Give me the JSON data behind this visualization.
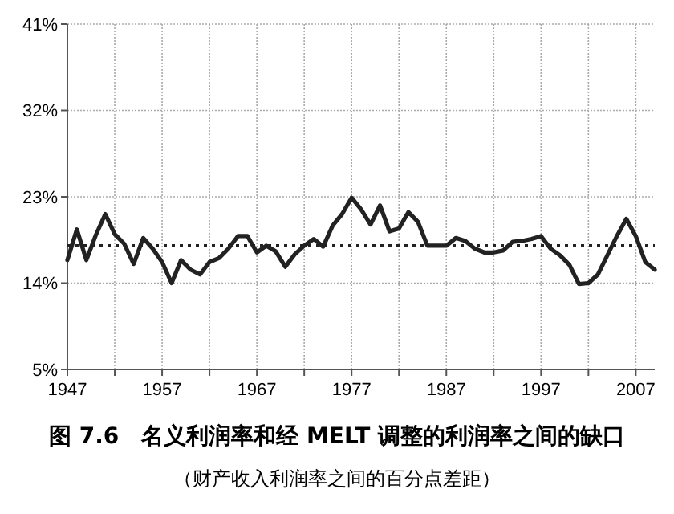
{
  "chart_data": {
    "type": "line",
    "title": "图 7.6　名义利润率和经 MELT 调整的利润率之间的缺口",
    "subtitle": "（财产收入利润率之间的百分点差距）",
    "x": [
      1947,
      1948,
      1949,
      1950,
      1951,
      1952,
      1953,
      1954,
      1955,
      1956,
      1957,
      1958,
      1959,
      1960,
      1961,
      1962,
      1963,
      1964,
      1965,
      1966,
      1967,
      1968,
      1969,
      1970,
      1971,
      1972,
      1973,
      1974,
      1975,
      1976,
      1977,
      1978,
      1979,
      1980,
      1981,
      1982,
      1983,
      1984,
      1985,
      1986,
      1987,
      1988,
      1989,
      1990,
      1991,
      1992,
      1993,
      1994,
      1995,
      1996,
      1997,
      1998,
      1999,
      2000,
      2001,
      2002,
      2003,
      2004,
      2005,
      2006,
      2007,
      2008,
      2009
    ],
    "series": [
      {
        "color": "#222222",
        "values": [
          16.4,
          19.6,
          16.4,
          19,
          21.2,
          19.1,
          18.1,
          16,
          18.7,
          17.6,
          16.2,
          14,
          16.4,
          15.4,
          14.9,
          16.2,
          16.6,
          17.6,
          18.9,
          18.9,
          17.2,
          17.9,
          17.3,
          15.7,
          17,
          17.9,
          18.6,
          17.8,
          20,
          21.2,
          22.9,
          21.7,
          20.1,
          22.1,
          19.4,
          19.7,
          21.4,
          20.4,
          17.9,
          17.9,
          17.9,
          18.7,
          18.4,
          17.6,
          17.2,
          17.2,
          17.4,
          18.3,
          18.4,
          18.6,
          18.9,
          17.6,
          16.9,
          15.9,
          13.9,
          14,
          14.9,
          16.9,
          18.9,
          20.7,
          18.9,
          16.2,
          15.4
        ]
      }
    ],
    "ref_lines": [
      {
        "axis": "y",
        "value": 17.9,
        "color": "#222222",
        "line_style": "dotted"
      }
    ],
    "xlim": [
      1947,
      2009
    ],
    "xticks": [
      1947,
      {
        "value": 1952,
        "label": null
      },
      1957,
      {
        "value": 1962,
        "label": null
      },
      1967,
      {
        "value": 1972,
        "label": null
      },
      1977,
      {
        "value": 1982,
        "label": null
      },
      1987,
      {
        "value": 1992,
        "label": null
      },
      1997,
      {
        "value": 2002,
        "label": null
      },
      2007
    ],
    "ylim": [
      5,
      41
    ],
    "yticks": [
      {
        "value": 5,
        "label": "5%"
      },
      {
        "value": 14,
        "label": "14%"
      },
      {
        "value": 23,
        "label": "23%"
      },
      {
        "value": 32,
        "label": "32%"
      },
      {
        "value": 41,
        "label": "41%"
      }
    ],
    "grid": true,
    "marker": "none",
    "line_style": "solid"
  }
}
